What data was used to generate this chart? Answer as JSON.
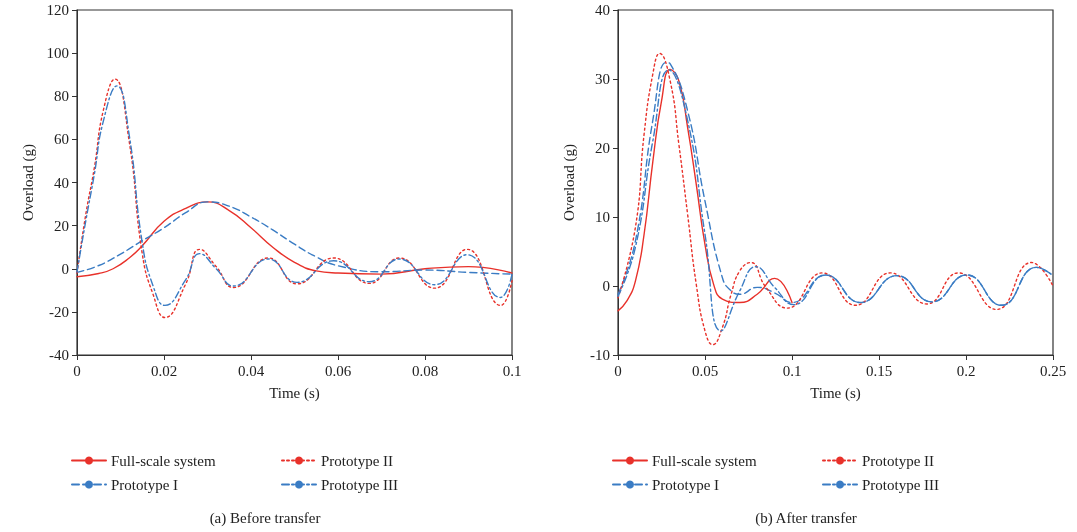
{
  "chart_data": [
    {
      "type": "line",
      "title": "(a) Before transfer",
      "xlabel": "Time (s)",
      "ylabel": "Overload (g)",
      "xlim": [
        0,
        0.1
      ],
      "xticks": [
        0,
        0.02,
        0.04,
        0.06,
        0.08,
        0.1
      ],
      "ylim": [
        -40,
        120
      ],
      "yticks": [
        -40,
        -20,
        0,
        20,
        40,
        60,
        80,
        100,
        120
      ],
      "grid": false,
      "legend": "bottom",
      "marker": "none",
      "series": [
        {
          "name": "Full-scale system",
          "color": "#e8312a",
          "line_style": "solid",
          "x": [
            0,
            0.005,
            0.0083,
            0.012,
            0.015,
            0.02,
            0.025,
            0.03,
            0.035,
            0.04,
            0.045,
            0.05,
            0.055,
            0.06,
            0.07,
            0.08,
            0.09,
            0.1
          ],
          "values": [
            -3.7,
            -2.2,
            0,
            5,
            10.7,
            22,
            28,
            31,
            27,
            19,
            10,
            3,
            -1,
            -2,
            -2.5,
            0,
            1,
            -2
          ]
        },
        {
          "name": "Prototype I",
          "color": "#3a7cc4",
          "line_style": "dashed",
          "x": [
            0,
            0.005,
            0.01,
            0.015,
            0.02,
            0.025,
            0.03,
            0.035,
            0.04,
            0.045,
            0.05,
            0.055,
            0.06,
            0.07,
            0.08,
            0.09,
            0.1
          ],
          "values": [
            -1.7,
            1.5,
            6.8,
            13,
            19,
            26,
            31,
            29,
            24,
            18,
            11.4,
            5.5,
            1.4,
            -1.4,
            -0.6,
            -1.7,
            -2.5
          ]
        },
        {
          "name": "Prototype II",
          "color": "#e8312a",
          "line_style": "dotted",
          "x": [
            0,
            0.002,
            0.004,
            0.006,
            0.0087,
            0.012,
            0.015,
            0.0175,
            0.0202,
            0.025,
            0.0282,
            0.032,
            0.036,
            0.044,
            0.0506,
            0.059,
            0.0672,
            0.0741,
            0.0822,
            0.0897,
            0.0974,
            0.1
          ],
          "values": [
            -2,
            25,
            47,
            73,
            88,
            59,
            7,
            -12,
            -22.6,
            -7,
            9,
            1,
            -8.7,
            5,
            -7,
            5,
            -6.8,
            5,
            -9,
            9,
            -17,
            -5.5
          ]
        },
        {
          "name": "Prototype III",
          "color": "#3a7cc4",
          "line_style": "dashdot",
          "x": [
            0,
            0.002,
            0.004,
            0.006,
            0.0092,
            0.012,
            0.015,
            0.0175,
            0.0202,
            0.025,
            0.0282,
            0.032,
            0.036,
            0.044,
            0.0506,
            0.059,
            0.0672,
            0.0741,
            0.0822,
            0.0897,
            0.0973,
            0.1
          ],
          "values": [
            -1.5,
            22,
            44,
            68,
            84.8,
            62,
            12,
            -8,
            -17,
            -5,
            7,
            0,
            -8,
            4.5,
            -6.3,
            3.7,
            -6,
            4.5,
            -7.4,
            6.5,
            -13.3,
            -2.5
          ]
        }
      ]
    },
    {
      "type": "line",
      "title": "(b) After transfer",
      "xlabel": "Time (s)",
      "ylabel": "Overload (g)",
      "xlim": [
        0,
        0.25
      ],
      "xticks": [
        0,
        0.05,
        0.1,
        0.15,
        0.2,
        0.25
      ],
      "ylim": [
        -10,
        40
      ],
      "yticks": [
        -10,
        0,
        10,
        20,
        30,
        40
      ],
      "grid": false,
      "legend": "bottom",
      "marker": "none",
      "series": [
        {
          "name": "Full-scale system",
          "color": "#e8312a",
          "line_style": "solid",
          "x": [
            0,
            0.005,
            0.01,
            0.015,
            0.02,
            0.025,
            0.03,
            0.035,
            0.04,
            0.045,
            0.05,
            0.055,
            0.06,
            0.07,
            0.08,
            0.09,
            0.1
          ],
          "values": [
            -3.6,
            -2.2,
            0.7,
            7.5,
            18,
            26.8,
            31.4,
            29.7,
            23,
            14.7,
            6,
            0.2,
            -1.9,
            -2.4,
            -1.2,
            1.1,
            -2.4
          ]
        },
        {
          "name": "Prototype I",
          "color": "#3a7cc4",
          "line_style": "dashed",
          "x": [
            0,
            0.01,
            0.02,
            0.0277,
            0.03,
            0.04,
            0.05,
            0.06,
            0.065,
            0.07,
            0.08,
            0.09,
            0.1,
            0.1193,
            0.1393,
            0.1603,
            0.1803,
            0.2004,
            0.2204,
            0.2405,
            0.25
          ],
          "values": [
            -1.2,
            6.5,
            24,
            32.4,
            32.2,
            25.4,
            12.3,
            1.2,
            -0.7,
            -1.2,
            -0.2,
            -1,
            -2.4,
            1.6,
            -2.4,
            1.5,
            -2.3,
            1.6,
            -2.8,
            2.7,
            1.5
          ]
        },
        {
          "name": "Prototype II",
          "color": "#e8312a",
          "line_style": "dotted",
          "x": [
            0,
            0.01,
            0.015,
            0.02,
            0.0239,
            0.03,
            0.035,
            0.04,
            0.045,
            0.05,
            0.0544,
            0.06,
            0.065,
            0.07,
            0.0763,
            0.085,
            0.0973,
            0.1174,
            0.1365,
            0.1565,
            0.1775,
            0.1956,
            0.2176,
            0.2376,
            0.25
          ],
          "values": [
            -1.7,
            8.5,
            22,
            30.7,
            33.7,
            29.7,
            20.5,
            10.4,
            0.2,
            -6.5,
            -8.5,
            -6,
            -1.2,
            2.2,
            3.4,
            -0.2,
            -3.2,
            1.9,
            -2.8,
            1.9,
            -2.6,
            1.9,
            -3.4,
            3.4,
            0
          ]
        },
        {
          "name": "Prototype III",
          "color": "#3a7cc4",
          "line_style": "dashdot",
          "x": [
            0,
            0.01,
            0.02,
            0.0292,
            0.04,
            0.05,
            0.0592,
            0.07,
            0.0792,
            0.09,
            0.1011,
            0.1193,
            0.1393,
            0.1603,
            0.1803,
            0.2004,
            0.2204,
            0.2405,
            0.25
          ],
          "values": [
            -1.5,
            5.6,
            21,
            31.3,
            24,
            7.5,
            -6.5,
            -0.7,
            2.8,
            -0.2,
            -2.7,
            1.6,
            -2.4,
            1.5,
            -2.3,
            1.6,
            -2.8,
            2.7,
            1.5
          ]
        }
      ]
    }
  ]
}
